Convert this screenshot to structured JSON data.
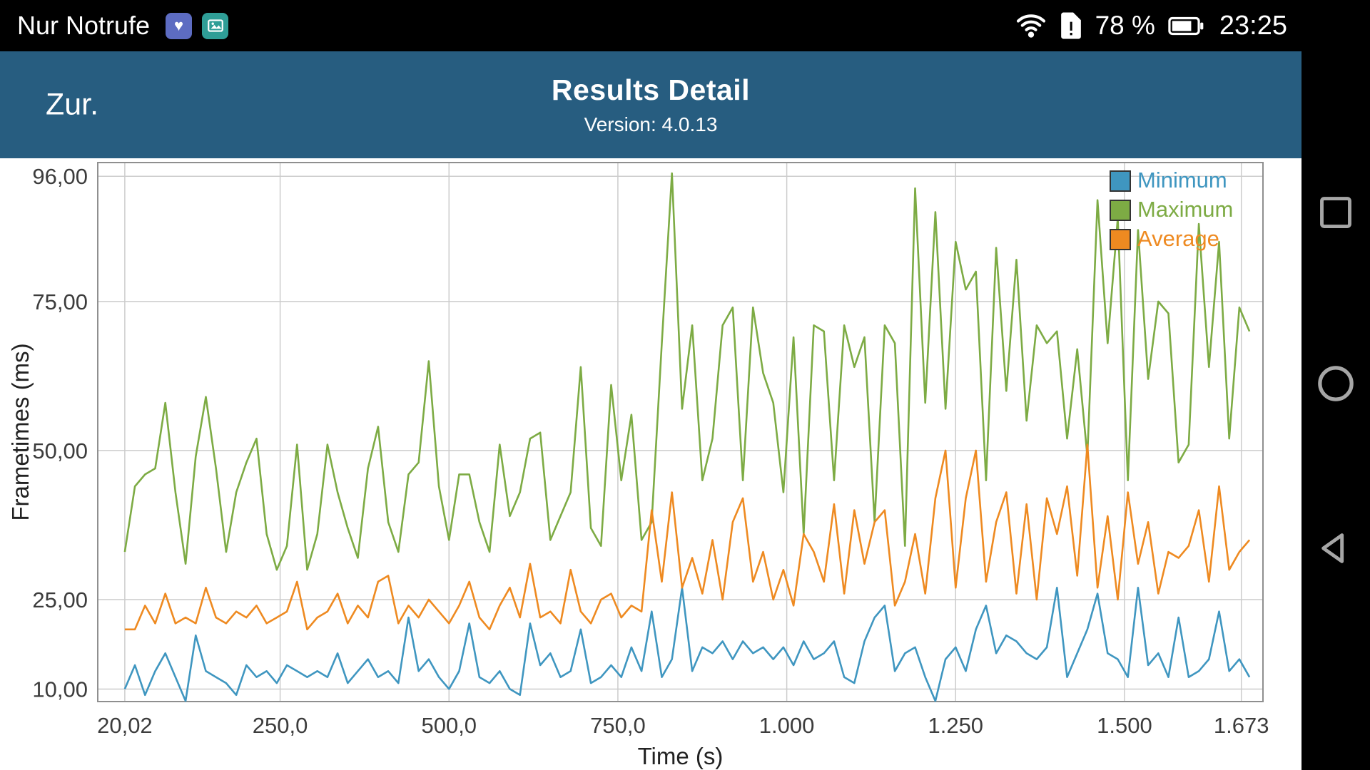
{
  "status_bar": {
    "carrier": "Nur Notrufe",
    "battery_percent": "78 %",
    "time": "23:25"
  },
  "header": {
    "back_label": "Zur.",
    "title": "Results Detail",
    "subtitle": "Version: 4.0.13"
  },
  "colors": {
    "header_background": "#275d80",
    "status_bar_background": "#000000",
    "chart_background": "#ffffff",
    "grid_line": "#cccccc",
    "plot_border": "#8f8f8f",
    "tick_text": "#3c3c3c",
    "nav_icon": "#a6a6a6",
    "minimum": "#3f96c0",
    "maximum": "#7dab44",
    "average": "#ee8a21"
  },
  "chart_data": {
    "type": "line",
    "title": "",
    "xlabel": "Time (s)",
    "ylabel": "Frametimes (ms)",
    "grid": true,
    "legend_position": "top-right",
    "xlim": [
      -20,
      1705
    ],
    "ylim": [
      7.9,
      98.3
    ],
    "x_tick_values": [
      20.02,
      250,
      500,
      750,
      1000,
      1250,
      1500,
      1673
    ],
    "x_tick_labels": [
      "20,02",
      "250,0",
      "500,0",
      "750,0",
      "1.000",
      "1.250",
      "1.500",
      "1.673"
    ],
    "y_tick_values": [
      10,
      25,
      50,
      75,
      96
    ],
    "y_tick_labels": [
      "10,00",
      "25,00",
      "50,00",
      "75,00",
      "96,00"
    ],
    "x_start": 20,
    "x_step": 15,
    "series": [
      {
        "name": "Minimum",
        "color": "#3f96c0",
        "values": [
          10,
          14,
          9,
          13,
          16,
          12,
          8,
          19,
          13,
          12,
          11,
          9,
          14,
          12,
          13,
          11,
          14,
          13,
          12,
          13,
          12,
          16,
          11,
          13,
          15,
          12,
          13,
          11,
          22,
          13,
          15,
          12,
          10,
          13,
          21,
          12,
          11,
          13,
          10,
          9,
          21,
          14,
          16,
          12,
          13,
          20,
          11,
          12,
          14,
          12,
          17,
          13,
          23,
          12,
          15,
          27,
          13,
          17,
          16,
          18,
          15,
          18,
          16,
          17,
          15,
          17,
          14,
          18,
          15,
          16,
          18,
          12,
          11,
          18,
          22,
          24,
          13,
          16,
          17,
          12,
          8,
          15,
          17,
          13,
          20,
          24,
          16,
          19,
          18,
          16,
          15,
          17,
          27,
          12,
          16,
          20,
          26,
          16,
          15,
          12,
          27,
          14,
          16,
          12,
          22,
          12,
          13,
          15,
          23,
          13,
          15,
          12
        ]
      },
      {
        "name": "Maximum",
        "color": "#7dab44",
        "values": [
          33,
          44,
          46,
          47,
          58,
          43,
          31,
          49,
          59,
          47,
          33,
          43,
          48,
          52,
          36,
          30,
          34,
          51,
          30,
          36,
          51,
          43,
          37,
          32,
          47,
          54,
          38,
          33,
          46,
          48,
          65,
          44,
          35,
          46,
          46,
          38,
          33,
          51,
          39,
          43,
          52,
          53,
          35,
          39,
          43,
          64,
          37,
          34,
          61,
          45,
          56,
          35,
          38,
          68,
          96.5,
          57,
          71,
          45,
          52,
          71,
          74,
          45,
          74,
          63,
          58,
          43,
          69,
          36,
          71,
          70,
          45,
          71,
          64,
          69,
          38,
          71,
          68,
          34,
          94,
          58,
          90,
          57,
          85,
          77,
          80,
          45,
          84,
          60,
          82,
          55,
          71,
          68,
          70,
          52,
          67,
          49,
          92,
          68,
          89,
          45,
          87,
          62,
          75,
          73,
          48,
          51,
          88,
          64,
          85,
          52,
          74,
          70
        ]
      },
      {
        "name": "Average",
        "color": "#ee8a21",
        "values": [
          20,
          20,
          24,
          21,
          26,
          21,
          22,
          21,
          27,
          22,
          21,
          23,
          22,
          24,
          21,
          22,
          23,
          28,
          20,
          22,
          23,
          26,
          21,
          24,
          22,
          28,
          29,
          21,
          24,
          22,
          25,
          23,
          21,
          24,
          28,
          22,
          20,
          24,
          27,
          22,
          31,
          22,
          23,
          21,
          30,
          23,
          21,
          25,
          26,
          22,
          24,
          23,
          40,
          28,
          43,
          27,
          32,
          26,
          35,
          25,
          38,
          42,
          28,
          33,
          25,
          30,
          24,
          36,
          33,
          28,
          41,
          26,
          40,
          31,
          38,
          40,
          24,
          28,
          36,
          26,
          42,
          50,
          27,
          42,
          50,
          28,
          38,
          43,
          26,
          41,
          25,
          42,
          36,
          44,
          29,
          51,
          27,
          39,
          25,
          43,
          31,
          38,
          26,
          33,
          32,
          34,
          40,
          28,
          44,
          30,
          33,
          35
        ]
      }
    ]
  }
}
